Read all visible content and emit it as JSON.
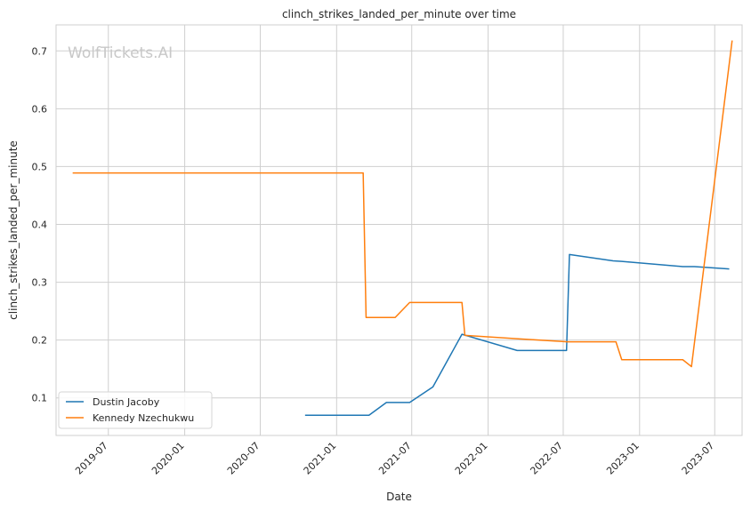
{
  "chart_data": {
    "type": "line",
    "title": "clinch_strikes_landed_per_minute over time",
    "xlabel": "Date",
    "ylabel": "clinch_strikes_landed_per_minute",
    "xlim": [
      "2019-02-25",
      "2023-09-05"
    ],
    "ylim": [
      0.035,
      0.745
    ],
    "x_ticks": [
      "2019-07",
      "2020-01",
      "2020-07",
      "2021-01",
      "2021-07",
      "2022-01",
      "2022-07",
      "2023-01",
      "2023-07"
    ],
    "y_ticks": [
      0.1,
      0.2,
      0.3,
      0.4,
      0.5,
      0.6,
      0.7
    ],
    "grid": true,
    "legend_position": "lower-left",
    "watermark": "WolfTickets.AI",
    "series": [
      {
        "name": "Dustin Jacoby",
        "color": "#1f77b4",
        "points": [
          {
            "x": "2020-10-17",
            "y": 0.07
          },
          {
            "x": "2021-03-20",
            "y": 0.07
          },
          {
            "x": "2021-05-01",
            "y": 0.092
          },
          {
            "x": "2021-06-26",
            "y": 0.092
          },
          {
            "x": "2021-08-21",
            "y": 0.119
          },
          {
            "x": "2021-10-30",
            "y": 0.21
          },
          {
            "x": "2022-03-12",
            "y": 0.182
          },
          {
            "x": "2022-07-09",
            "y": 0.182
          },
          {
            "x": "2022-07-16",
            "y": 0.348
          },
          {
            "x": "2022-10-29",
            "y": 0.337
          },
          {
            "x": "2022-11-19",
            "y": 0.336
          },
          {
            "x": "2023-04-15",
            "y": 0.327
          },
          {
            "x": "2023-05-13",
            "y": 0.327
          },
          {
            "x": "2023-08-05",
            "y": 0.323
          }
        ]
      },
      {
        "name": "Kennedy Nzechukwu",
        "color": "#ff7f0e",
        "points": [
          {
            "x": "2019-04-06",
            "y": 0.489
          },
          {
            "x": "2021-03-06",
            "y": 0.489
          },
          {
            "x": "2021-03-13",
            "y": 0.239
          },
          {
            "x": "2021-05-22",
            "y": 0.239
          },
          {
            "x": "2021-06-26",
            "y": 0.265
          },
          {
            "x": "2021-10-30",
            "y": 0.265
          },
          {
            "x": "2021-11-06",
            "y": 0.208
          },
          {
            "x": "2022-03-19",
            "y": 0.202
          },
          {
            "x": "2022-07-09",
            "y": 0.197
          },
          {
            "x": "2022-11-05",
            "y": 0.197
          },
          {
            "x": "2022-11-19",
            "y": 0.166
          },
          {
            "x": "2023-04-15",
            "y": 0.166
          },
          {
            "x": "2023-05-06",
            "y": 0.154
          },
          {
            "x": "2023-08-12",
            "y": 0.718
          }
        ]
      }
    ]
  }
}
